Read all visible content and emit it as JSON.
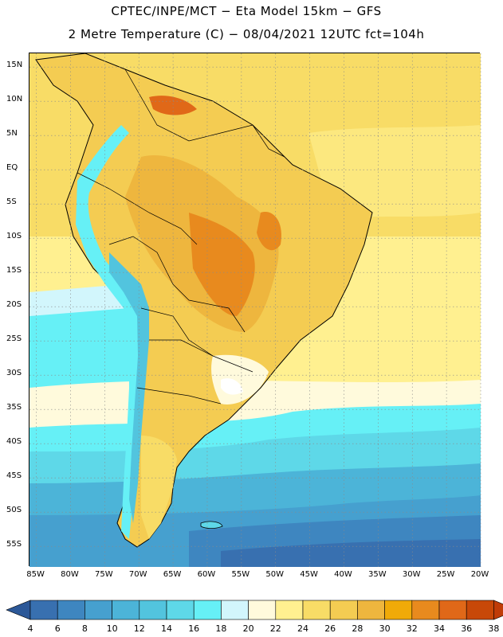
{
  "title_line1": "CPTEC/INPE/MCT −  Eta Model 15km − GFS",
  "title_line2": "2 Metre Temperature (C) − 08/04/2021 12UTC fct=104h",
  "map": {
    "projection": "lat-lon",
    "lon_range": [
      -86,
      -20
    ],
    "lat_range": [
      -58,
      17
    ],
    "lat_ticks": [
      "15N",
      "10N",
      "5N",
      "EQ",
      "5S",
      "10S",
      "15S",
      "20S",
      "25S",
      "30S",
      "35S",
      "40S",
      "45S",
      "50S",
      "55S"
    ],
    "lon_ticks": [
      "85W",
      "80W",
      "75W",
      "70W",
      "65W",
      "60W",
      "55W",
      "50W",
      "45W",
      "40W",
      "35W",
      "30W",
      "25W",
      "20W"
    ],
    "grid": "dotted"
  },
  "colorbar": {
    "labels": [
      "4",
      "6",
      "8",
      "10",
      "12",
      "14",
      "16",
      "18",
      "20",
      "22",
      "24",
      "26",
      "28",
      "30",
      "32",
      "34",
      "36",
      "38"
    ],
    "colors": [
      "#3870b0",
      "#3e86c0",
      "#46a0cf",
      "#4cb4d8",
      "#52c4de",
      "#5ed8e8",
      "#66f0f6",
      "#d2f6fc",
      "#fffadc",
      "#fff090",
      "#f8dc66",
      "#f4cc52",
      "#eeb63e",
      "#f0aa08",
      "#e88a1e",
      "#e06818",
      "#c84808"
    ],
    "under_color": "#2c5898",
    "over_color": "#c03c08"
  }
}
